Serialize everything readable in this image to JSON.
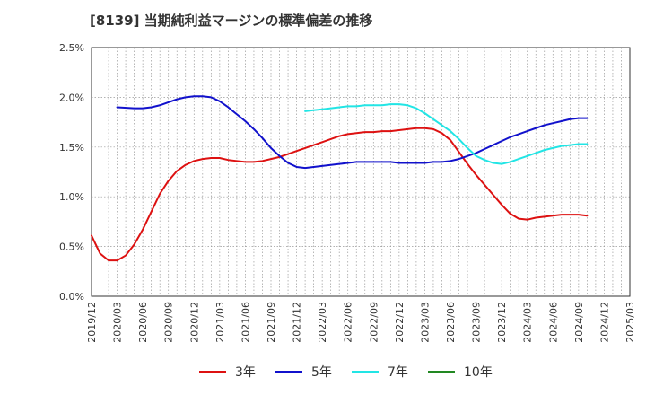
{
  "chart_data": {
    "type": "line",
    "title": "[8139]  当期純利益マージンの標準偏差の推移",
    "xlabel": "",
    "ylabel": "",
    "ylim": [
      0,
      2.5
    ],
    "y_ticks": [
      0,
      0.5,
      1.0,
      1.5,
      2.0,
      2.5
    ],
    "y_tick_labels": [
      "0.0%",
      "0.5%",
      "1.0%",
      "1.5%",
      "2.0%",
      "2.5%"
    ],
    "x_range": [
      "2019-12",
      "2025-03"
    ],
    "x_tick_labels": [
      "2019/12",
      "2020/03",
      "2020/06",
      "2020/09",
      "2020/12",
      "2021/03",
      "2021/06",
      "2021/09",
      "2021/12",
      "2022/03",
      "2022/06",
      "2022/09",
      "2022/12",
      "2023/03",
      "2023/06",
      "2023/09",
      "2023/12",
      "2024/03",
      "2024/06",
      "2024/09",
      "2024/12",
      "2025/03"
    ],
    "grid": true,
    "legend_position": "bottom",
    "series": [
      {
        "name": "3年",
        "color": "#dd1111",
        "points": [
          [
            "2019-12",
            0.61
          ],
          [
            "2020-01",
            0.43
          ],
          [
            "2020-02",
            0.36
          ],
          [
            "2020-03",
            0.36
          ],
          [
            "2020-04",
            0.41
          ],
          [
            "2020-05",
            0.52
          ],
          [
            "2020-06",
            0.67
          ],
          [
            "2020-07",
            0.85
          ],
          [
            "2020-08",
            1.03
          ],
          [
            "2020-09",
            1.16
          ],
          [
            "2020-10",
            1.26
          ],
          [
            "2020-11",
            1.32
          ],
          [
            "2020-12",
            1.36
          ],
          [
            "2021-01",
            1.38
          ],
          [
            "2021-02",
            1.39
          ],
          [
            "2021-03",
            1.39
          ],
          [
            "2021-04",
            1.37
          ],
          [
            "2021-05",
            1.36
          ],
          [
            "2021-06",
            1.35
          ],
          [
            "2021-07",
            1.35
          ],
          [
            "2021-08",
            1.36
          ],
          [
            "2021-09",
            1.38
          ],
          [
            "2021-10",
            1.4
          ],
          [
            "2021-11",
            1.43
          ],
          [
            "2021-12",
            1.46
          ],
          [
            "2022-01",
            1.49
          ],
          [
            "2022-02",
            1.52
          ],
          [
            "2022-03",
            1.55
          ],
          [
            "2022-04",
            1.58
          ],
          [
            "2022-05",
            1.61
          ],
          [
            "2022-06",
            1.63
          ],
          [
            "2022-07",
            1.64
          ],
          [
            "2022-08",
            1.65
          ],
          [
            "2022-09",
            1.65
          ],
          [
            "2022-10",
            1.66
          ],
          [
            "2022-11",
            1.66
          ],
          [
            "2022-12",
            1.67
          ],
          [
            "2023-01",
            1.68
          ],
          [
            "2023-02",
            1.69
          ],
          [
            "2023-03",
            1.69
          ],
          [
            "2023-04",
            1.68
          ],
          [
            "2023-05",
            1.64
          ],
          [
            "2023-06",
            1.57
          ],
          [
            "2023-07",
            1.45
          ],
          [
            "2023-08",
            1.33
          ],
          [
            "2023-09",
            1.22
          ],
          [
            "2023-10",
            1.12
          ],
          [
            "2023-11",
            1.02
          ],
          [
            "2023-12",
            0.92
          ],
          [
            "2024-01",
            0.83
          ],
          [
            "2024-02",
            0.78
          ],
          [
            "2024-03",
            0.77
          ],
          [
            "2024-04",
            0.79
          ],
          [
            "2024-05",
            0.8
          ],
          [
            "2024-06",
            0.81
          ],
          [
            "2024-07",
            0.82
          ],
          [
            "2024-08",
            0.82
          ],
          [
            "2024-09",
            0.82
          ],
          [
            "2024-10",
            0.81
          ]
        ]
      },
      {
        "name": "5年",
        "color": "#1111cc",
        "points": [
          [
            "2020-03",
            1.9
          ],
          [
            "2020-05",
            1.89
          ],
          [
            "2020-06",
            1.89
          ],
          [
            "2020-07",
            1.9
          ],
          [
            "2020-08",
            1.92
          ],
          [
            "2020-09",
            1.95
          ],
          [
            "2020-10",
            1.98
          ],
          [
            "2020-11",
            2.0
          ],
          [
            "2020-12",
            2.01
          ],
          [
            "2021-01",
            2.01
          ],
          [
            "2021-02",
            2.0
          ],
          [
            "2021-03",
            1.96
          ],
          [
            "2021-04",
            1.9
          ],
          [
            "2021-05",
            1.83
          ],
          [
            "2021-06",
            1.76
          ],
          [
            "2021-07",
            1.68
          ],
          [
            "2021-08",
            1.59
          ],
          [
            "2021-09",
            1.49
          ],
          [
            "2021-10",
            1.41
          ],
          [
            "2021-11",
            1.34
          ],
          [
            "2021-12",
            1.3
          ],
          [
            "2022-01",
            1.29
          ],
          [
            "2022-02",
            1.3
          ],
          [
            "2022-03",
            1.31
          ],
          [
            "2022-04",
            1.32
          ],
          [
            "2022-05",
            1.33
          ],
          [
            "2022-06",
            1.34
          ],
          [
            "2022-07",
            1.35
          ],
          [
            "2022-08",
            1.35
          ],
          [
            "2022-09",
            1.35
          ],
          [
            "2022-10",
            1.35
          ],
          [
            "2022-11",
            1.35
          ],
          [
            "2022-12",
            1.34
          ],
          [
            "2023-01",
            1.34
          ],
          [
            "2023-02",
            1.34
          ],
          [
            "2023-03",
            1.34
          ],
          [
            "2023-04",
            1.35
          ],
          [
            "2023-05",
            1.35
          ],
          [
            "2023-06",
            1.36
          ],
          [
            "2023-07",
            1.38
          ],
          [
            "2023-08",
            1.41
          ],
          [
            "2023-09",
            1.44
          ],
          [
            "2023-10",
            1.48
          ],
          [
            "2023-11",
            1.52
          ],
          [
            "2023-12",
            1.56
          ],
          [
            "2024-01",
            1.6
          ],
          [
            "2024-02",
            1.63
          ],
          [
            "2024-03",
            1.66
          ],
          [
            "2024-04",
            1.69
          ],
          [
            "2024-05",
            1.72
          ],
          [
            "2024-06",
            1.74
          ],
          [
            "2024-07",
            1.76
          ],
          [
            "2024-08",
            1.78
          ],
          [
            "2024-09",
            1.79
          ],
          [
            "2024-10",
            1.79
          ]
        ]
      },
      {
        "name": "7年",
        "color": "#22e5e5",
        "points": [
          [
            "2022-01",
            1.86
          ],
          [
            "2022-02",
            1.87
          ],
          [
            "2022-03",
            1.88
          ],
          [
            "2022-04",
            1.89
          ],
          [
            "2022-05",
            1.9
          ],
          [
            "2022-06",
            1.91
          ],
          [
            "2022-07",
            1.91
          ],
          [
            "2022-08",
            1.92
          ],
          [
            "2022-09",
            1.92
          ],
          [
            "2022-10",
            1.92
          ],
          [
            "2022-11",
            1.93
          ],
          [
            "2022-12",
            1.93
          ],
          [
            "2023-01",
            1.92
          ],
          [
            "2023-02",
            1.89
          ],
          [
            "2023-03",
            1.84
          ],
          [
            "2023-04",
            1.78
          ],
          [
            "2023-05",
            1.72
          ],
          [
            "2023-06",
            1.66
          ],
          [
            "2023-07",
            1.58
          ],
          [
            "2023-08",
            1.49
          ],
          [
            "2023-09",
            1.41
          ],
          [
            "2023-10",
            1.37
          ],
          [
            "2023-11",
            1.34
          ],
          [
            "2023-12",
            1.33
          ],
          [
            "2024-01",
            1.35
          ],
          [
            "2024-02",
            1.38
          ],
          [
            "2024-03",
            1.41
          ],
          [
            "2024-04",
            1.44
          ],
          [
            "2024-05",
            1.47
          ],
          [
            "2024-06",
            1.49
          ],
          [
            "2024-07",
            1.51
          ],
          [
            "2024-08",
            1.52
          ],
          [
            "2024-09",
            1.53
          ],
          [
            "2024-10",
            1.53
          ]
        ]
      },
      {
        "name": "10年",
        "color": "#228822",
        "points": []
      }
    ]
  }
}
